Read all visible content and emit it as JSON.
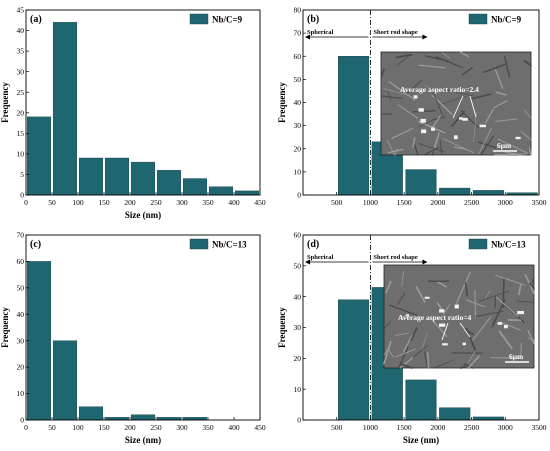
{
  "colors": {
    "bar": "#206671",
    "bar_edge": "#0f3b42",
    "inset_bg": "#6e6e6e"
  },
  "chart_data": [
    {
      "panel": "(a)",
      "type": "bar",
      "title": "",
      "xlabel": "Size (nm)",
      "ylabel": "Frequency",
      "xlim": [
        0,
        450
      ],
      "ylim": [
        0,
        45
      ],
      "x_ticks": [
        0,
        50,
        100,
        150,
        200,
        250,
        300,
        350,
        400,
        450
      ],
      "y_ticks": [
        0,
        5,
        10,
        15,
        20,
        25,
        30,
        35,
        40,
        45
      ],
      "bin_width": 50,
      "bins": [
        0,
        50,
        100,
        150,
        200,
        250,
        300,
        350,
        400
      ],
      "values": [
        19,
        42,
        9,
        9,
        8,
        6,
        4,
        2,
        1
      ],
      "legend": [
        "Nb/C=9"
      ],
      "legend_position": "top-right",
      "grid": false
    },
    {
      "panel": "(b)",
      "type": "bar",
      "title": "",
      "xlabel": "",
      "ylabel": "Frequency",
      "xlim": [
        0,
        3500
      ],
      "ylim": [
        0,
        80
      ],
      "x_ticks": [
        500,
        1000,
        1500,
        2000,
        2500,
        3000,
        3500
      ],
      "y_ticks": [
        0,
        10,
        20,
        30,
        40,
        50,
        60,
        70,
        80
      ],
      "bin_width": 500,
      "bins": [
        500,
        1000,
        1500,
        2000,
        2500,
        3000
      ],
      "values": [
        60,
        23,
        11,
        3,
        2,
        1
      ],
      "legend": [
        "Nb/C=9"
      ],
      "legend_position": "top-right",
      "divider_x": 1000,
      "regions": [
        "Spherical",
        "Short rod shape"
      ],
      "inset_annotation": "Average aspect ratio=2.4",
      "inset_scale": "6μm",
      "grid": false
    },
    {
      "panel": "(c)",
      "type": "bar",
      "title": "",
      "xlabel": "Size (nm)",
      "ylabel": "Frequency",
      "xlim": [
        0,
        450
      ],
      "ylim": [
        0,
        70
      ],
      "x_ticks": [
        0,
        50,
        100,
        150,
        200,
        250,
        300,
        350,
        400,
        450
      ],
      "y_ticks": [
        0,
        10,
        20,
        30,
        40,
        50,
        60,
        70
      ],
      "bin_width": 50,
      "bins": [
        0,
        50,
        100,
        150,
        200,
        250,
        300,
        350,
        400
      ],
      "values": [
        60,
        30,
        5,
        1,
        2,
        1,
        1,
        0,
        0
      ],
      "legend": [
        "Nb/C=13"
      ],
      "legend_position": "top-right",
      "grid": false
    },
    {
      "panel": "(d)",
      "type": "bar",
      "title": "",
      "xlabel": "Size (nm)",
      "ylabel": "Frequency",
      "xlim": [
        0,
        3500
      ],
      "ylim": [
        0,
        60
      ],
      "x_ticks": [
        500,
        1000,
        1500,
        2000,
        2500,
        3000,
        3500
      ],
      "y_ticks": [
        0,
        10,
        20,
        30,
        40,
        50,
        60
      ],
      "bin_width": 500,
      "bins": [
        500,
        1000,
        1500,
        2000,
        2500,
        3000
      ],
      "values": [
        39,
        43,
        13,
        4,
        1,
        0
      ],
      "legend": [
        "Nb/C=13"
      ],
      "legend_position": "top-right",
      "divider_x": 1000,
      "regions": [
        "Spherical",
        "Short rod shape"
      ],
      "inset_annotation": "Average aspect ratio=4",
      "inset_scale": "6μm",
      "grid": false
    }
  ]
}
